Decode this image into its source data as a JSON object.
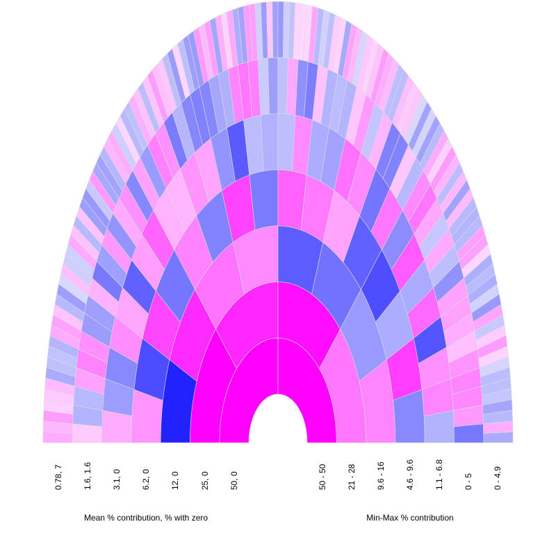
{
  "chart_data": {
    "type": "heatmap",
    "variant": "half-elliptical ring heatmap (two halves)",
    "rings": 7,
    "colors": {
      "high_blue": "#0000ff",
      "high_magenta": "#ff00ff",
      "background": "#ffffff"
    },
    "left_half": {
      "xlabel": "Mean % contribution, % with zero",
      "ring_labels": [
        "50, 0",
        "25, 0",
        "12, 0",
        "6.2, 0",
        "3.1, 0",
        "1.6, 1.6",
        "0.78, 7"
      ]
    },
    "right_half": {
      "xlabel": "Min-Max % contribution",
      "ring_labels": [
        "50 - 50",
        "21 - 28",
        "9.6 - 16",
        "4.6 - 9.6",
        "1.1 - 6.8",
        "0 - 5",
        "0 - 4.9"
      ]
    }
  }
}
